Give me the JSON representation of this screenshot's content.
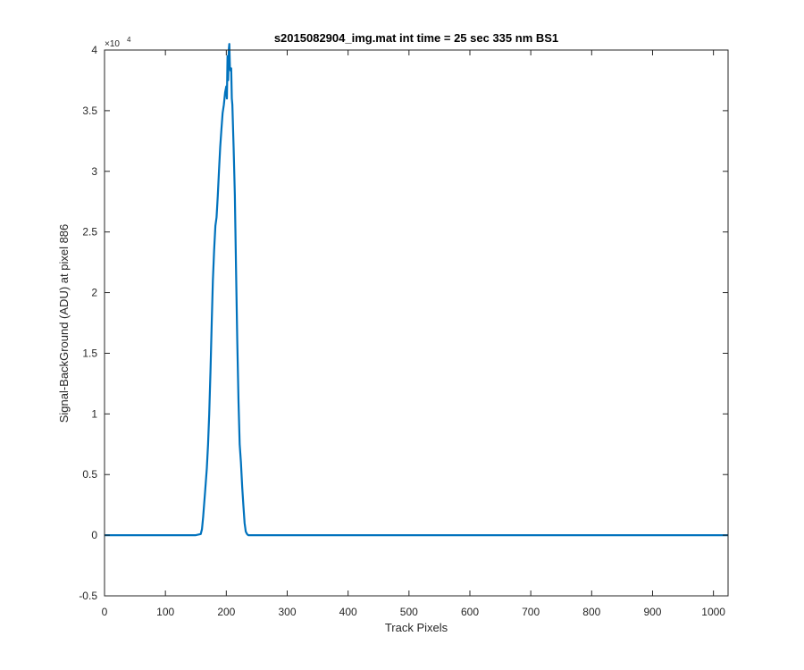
{
  "chart_data": {
    "type": "line",
    "title": "s2015082904_img.mat int time = 25 sec  335 nm BS1",
    "xlabel": "Track Pixels",
    "ylabel": "Signal-BackGround (ADU) at pixel 886",
    "xlim": [
      0,
      1024
    ],
    "ylim": [
      -0.5,
      4
    ],
    "y_multiplier": "×10",
    "y_exponent": "4",
    "x_ticks": [
      "0",
      "100",
      "200",
      "300",
      "400",
      "500",
      "600",
      "700",
      "800",
      "900",
      "1000"
    ],
    "y_ticks": [
      "-0.5",
      "0",
      "0.5",
      "1",
      "1.5",
      "2",
      "2.5",
      "3",
      "3.5",
      "4"
    ],
    "grid": false,
    "line_color": "#0072BD",
    "series": [
      {
        "x": [
          0,
          50,
          100,
          150,
          158,
          160,
          162,
          165,
          168,
          170,
          172,
          174,
          176,
          178,
          180,
          182,
          184,
          186,
          188,
          190,
          192,
          194,
          196,
          198,
          200,
          201,
          202,
          203,
          204,
          205,
          206,
          207,
          208,
          209,
          210,
          212,
          214,
          216,
          218,
          220,
          222,
          224,
          226,
          228,
          230,
          232,
          234,
          236,
          238,
          240,
          300,
          400,
          500,
          600,
          700,
          800,
          900,
          1024
        ],
        "y": [
          0.0,
          0.0,
          0.0,
          0.0,
          0.01,
          0.05,
          0.15,
          0.35,
          0.55,
          0.75,
          1.0,
          1.35,
          1.75,
          2.1,
          2.35,
          2.55,
          2.62,
          2.8,
          3.0,
          3.2,
          3.35,
          3.48,
          3.55,
          3.65,
          3.7,
          3.6,
          3.95,
          3.75,
          4.0,
          4.05,
          3.85,
          3.83,
          3.85,
          3.6,
          3.55,
          3.2,
          2.8,
          2.2,
          1.6,
          1.1,
          0.75,
          0.6,
          0.4,
          0.25,
          0.1,
          0.03,
          0.01,
          0.0,
          0.0,
          0.0,
          0.0,
          0.0,
          0.0,
          0.0,
          0.0,
          0.0,
          0.0,
          0.0
        ]
      }
    ]
  }
}
